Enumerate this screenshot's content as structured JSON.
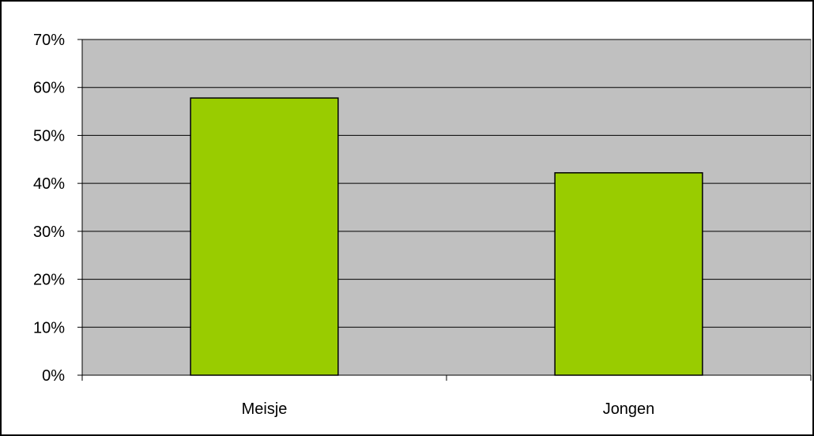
{
  "chart_data": {
    "type": "bar",
    "title": "",
    "xlabel": "",
    "ylabel": "",
    "categories": [
      "Meisje",
      "Jongen"
    ],
    "values": [
      57.8,
      42.2
    ],
    "value_unit": "%",
    "ylim": [
      0,
      70
    ],
    "y_ticks": [
      0,
      10,
      20,
      30,
      40,
      50,
      60,
      70
    ],
    "y_tick_labels": [
      "0%",
      "10%",
      "20%",
      "30%",
      "40%",
      "50%",
      "60%",
      "70%"
    ],
    "grid": true,
    "legend": "none",
    "colors": {
      "bar_fill": "#99cc00",
      "bar_stroke": "#000000",
      "plot_background": "#c0c0c0",
      "chart_background": "#ffffff",
      "gridline": "#000000"
    }
  }
}
